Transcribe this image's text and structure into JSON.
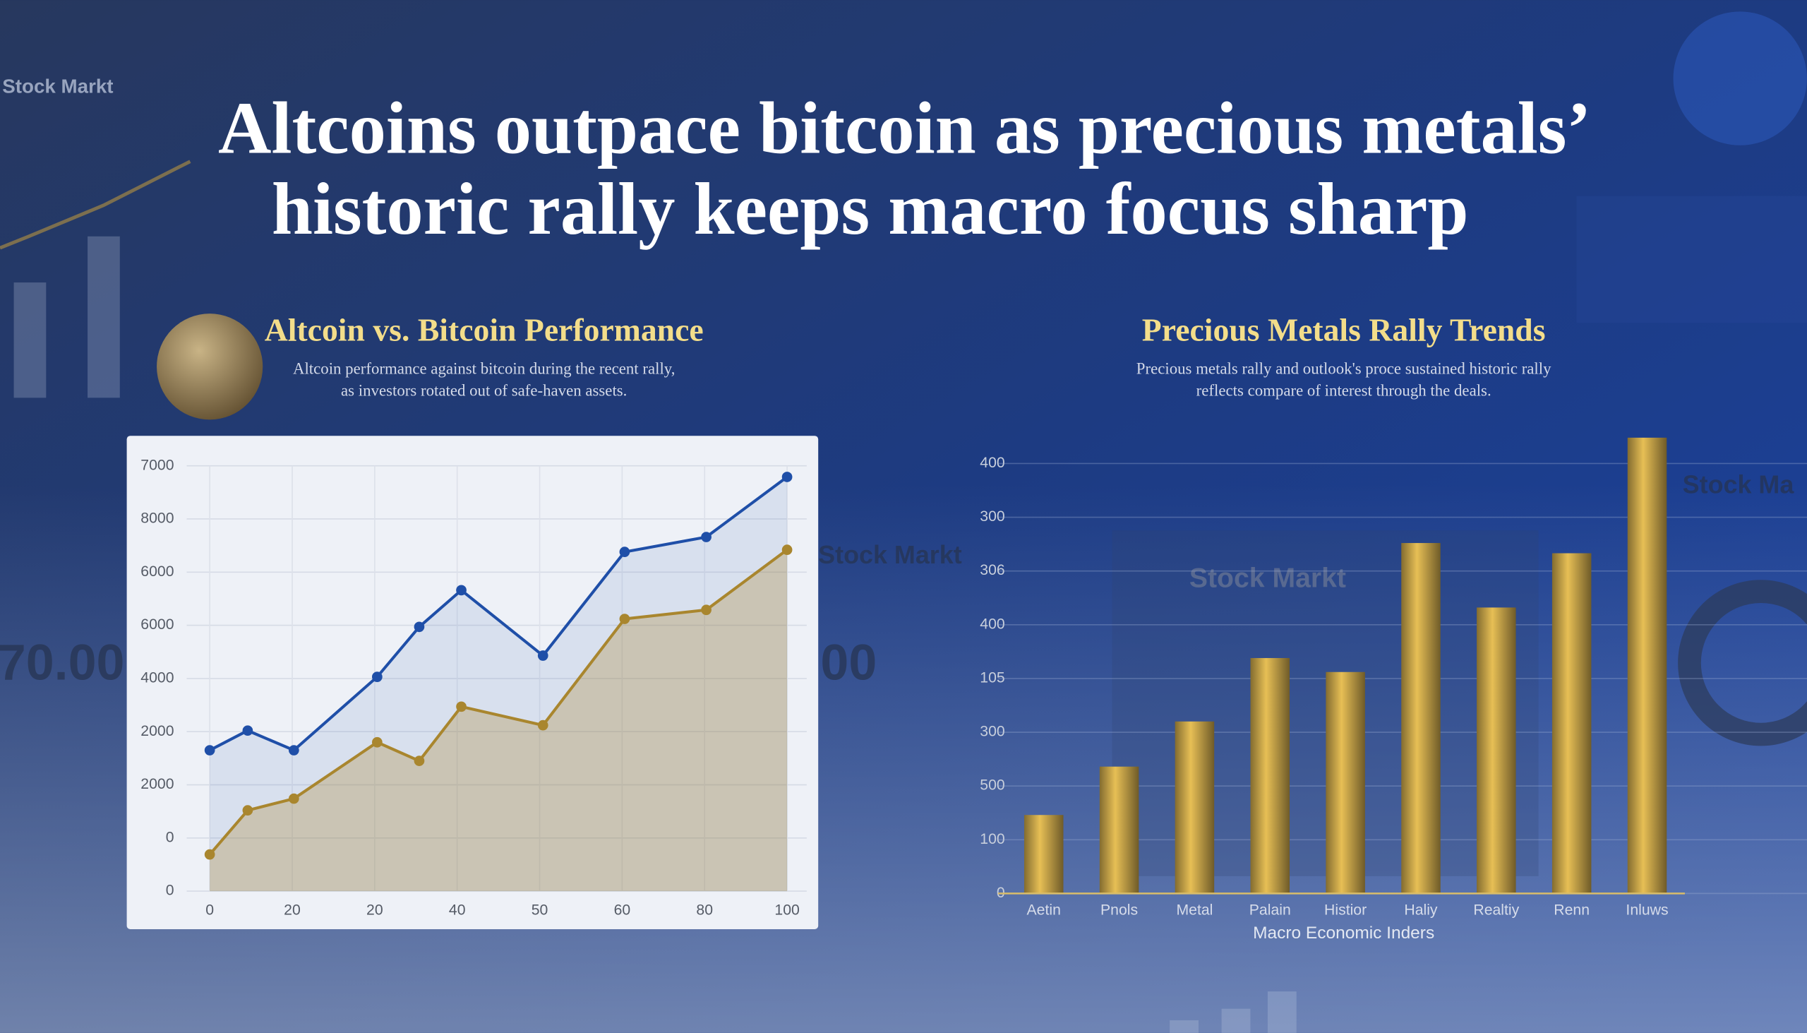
{
  "header": {
    "title_lines": [
      "Altcoins outpace bitcoin as precious metals’",
      "historic rally keeps macro focus sharp"
    ]
  },
  "background": {
    "texts": [
      "Stock Markt",
      "Stock Markt",
      "Stock Markt",
      "70.00",
      "Stock Ma",
      "00"
    ]
  },
  "chart_data": [
    {
      "type": "line",
      "title": "Altcoin vs. Bitcoin Performance",
      "subtitle_lines": [
        "Altcoin performance against bitcoin during the recent rally,",
        "as investors rotated out of safe-haven assets."
      ],
      "x": [
        0,
        0.46,
        1.02,
        2.03,
        2.54,
        3.05,
        4.04,
        5.03,
        6.02,
        7.0
      ],
      "series": [
        {
          "color": "#1f4fa8",
          "values": [
            2.65,
            3.02,
            2.65,
            4.03,
            4.97,
            5.66,
            4.43,
            6.38,
            6.66,
            7.79
          ]
        },
        {
          "color": "#a9862e",
          "values": [
            0.69,
            1.52,
            1.74,
            2.8,
            2.45,
            3.47,
            3.12,
            5.12,
            5.29,
            6.42
          ]
        }
      ],
      "area": true,
      "grid": true,
      "xlim": [
        0,
        7
      ],
      "xticks": [
        0,
        {
          "value": 1,
          "label": "20"
        },
        {
          "value": 2,
          "label": "20"
        },
        {
          "value": 3,
          "label": "40"
        },
        {
          "value": 4,
          "label": "50"
        },
        {
          "value": 5,
          "label": "60"
        },
        {
          "value": 6,
          "label": "80"
        },
        {
          "value": 7,
          "label": "100"
        }
      ],
      "ylim": [
        0,
        8
      ],
      "yticks": [
        0,
        {
          "value": 1,
          "label": "0"
        },
        {
          "value": 2,
          "label": "2000"
        },
        {
          "value": 3,
          "label": "2000"
        },
        {
          "value": 4,
          "label": "4000"
        },
        {
          "value": 5,
          "label": "6000"
        },
        {
          "value": 6,
          "label": "6000"
        },
        {
          "value": 7,
          "label": "8000"
        },
        {
          "value": 8,
          "label": "7000"
        }
      ]
    },
    {
      "type": "bar",
      "title": "Precious Metals Rally Trends",
      "subtitle_lines": [
        "Precious metals rally and outlook's proce sustained historic rally",
        "reflects compare of interest through the deals."
      ],
      "categories": [
        "Aetin",
        "Pnols",
        "Metal",
        "Palain",
        "Histior",
        "Haliy",
        "Realtiy",
        "Renn",
        "Inluws"
      ],
      "values": [
        1.46,
        2.36,
        3.2,
        4.38,
        4.12,
        6.52,
        5.32,
        6.33,
        8.48
      ],
      "color": "#c9a64a",
      "grid": true,
      "xlabel": "Macro Economic Inders",
      "ylim": [
        0,
        9
      ],
      "yticks": [
        0,
        {
          "value": 1,
          "label": "100"
        },
        {
          "value": 2,
          "label": "500"
        },
        {
          "value": 3,
          "label": "300"
        },
        {
          "value": 4,
          "label": "105"
        },
        {
          "value": 5,
          "label": "400"
        },
        {
          "value": 6,
          "label": "306"
        },
        {
          "value": 7,
          "label": "300"
        },
        {
          "value": 8,
          "label": "400"
        }
      ]
    }
  ]
}
